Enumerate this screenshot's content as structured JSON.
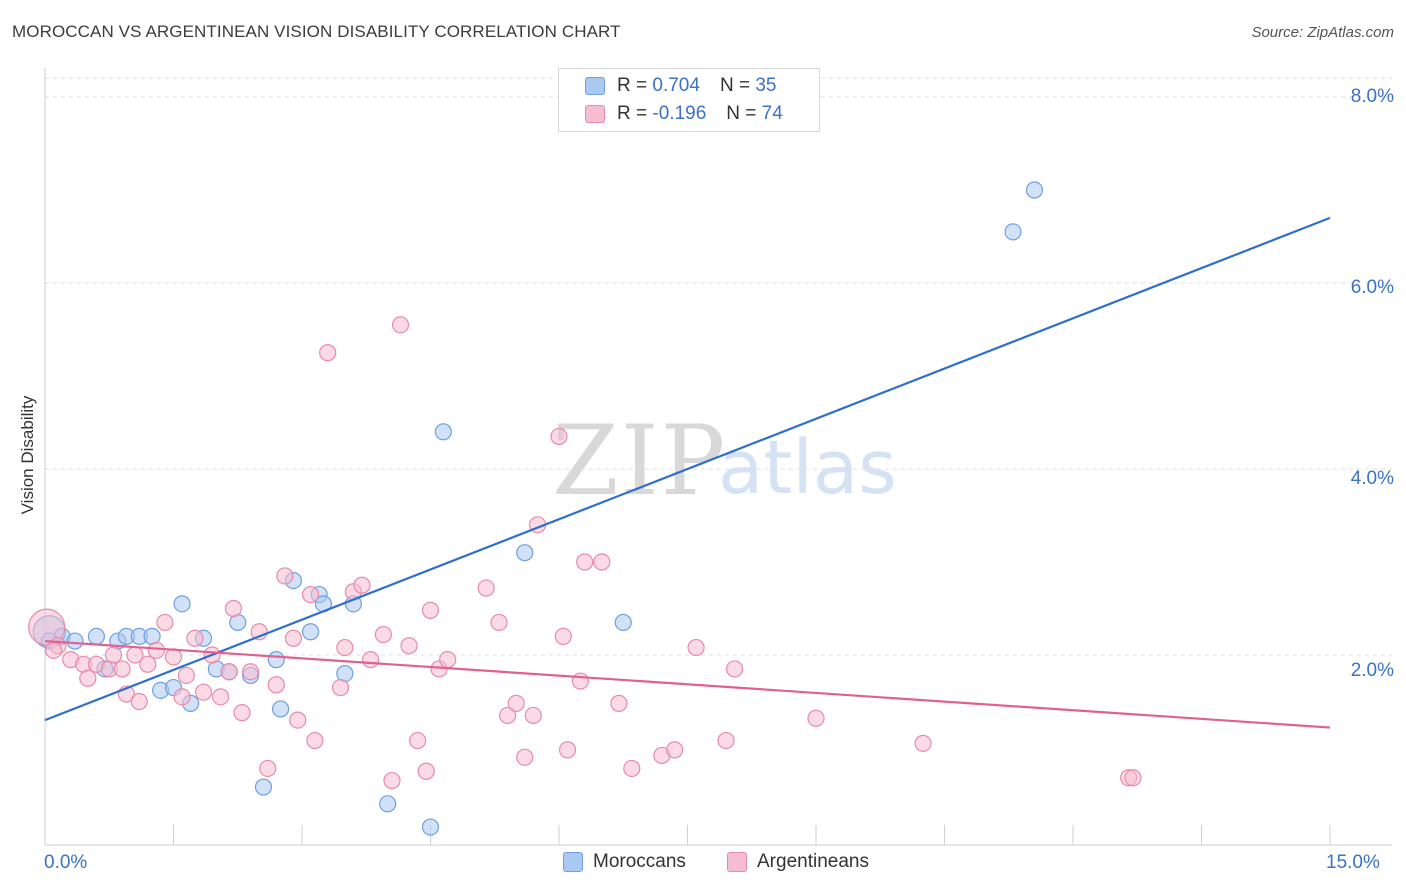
{
  "header": {
    "title": "MOROCCAN VS ARGENTINEAN VISION DISABILITY CORRELATION CHART",
    "source": "Source: ZipAtlas.com"
  },
  "watermark": {
    "zip": "ZIP",
    "atlas": "atlas"
  },
  "legend": {
    "rows": [
      {
        "r_label": "R = ",
        "r_value": "0.704",
        "n_label": "N = ",
        "n_value": "35",
        "color": "#a9c8f2",
        "border": "#6f9fe0"
      },
      {
        "r_label": "R = ",
        "r_value": "-0.196",
        "n_label": "N = ",
        "n_value": "74",
        "color": "#f6bdd0",
        "border": "#e88aaa"
      }
    ]
  },
  "bottom_legend": {
    "items": [
      {
        "label": "Moroccans",
        "color": "#a9c8f2",
        "border": "#6f9fe0"
      },
      {
        "label": "Argentineans",
        "color": "#f6bdd0",
        "border": "#e88aaa"
      }
    ]
  },
  "axes": {
    "x_min_label": "0.0%",
    "x_max_label": "15.0%",
    "y_ticks": [
      "8.0%",
      "6.0%",
      "4.0%",
      "2.0%"
    ]
  },
  "chart_data": {
    "type": "scatter",
    "title": "MOROCCAN VS ARGENTINEAN VISION DISABILITY CORRELATION CHART",
    "xlabel": "",
    "ylabel": "Vision Disability",
    "xlim": [
      0,
      15
    ],
    "ylim": [
      0,
      8.2
    ],
    "y_gridlines": [
      2,
      4,
      6,
      8,
      8.2
    ],
    "series": [
      {
        "name": "Moroccans",
        "color": "#a9c8f2",
        "stroke": "#6f9fe0",
        "line_color": "#2f6fcc",
        "trend": {
          "x": [
            0,
            15
          ],
          "y": [
            1.3,
            6.7
          ]
        },
        "points": [
          [
            0.05,
            2.25
          ],
          [
            0.2,
            2.2
          ],
          [
            0.35,
            2.15
          ],
          [
            0.6,
            2.2
          ],
          [
            0.85,
            2.15
          ],
          [
            0.95,
            2.2
          ],
          [
            1.1,
            2.2
          ],
          [
            1.25,
            2.2
          ],
          [
            0.7,
            1.85
          ],
          [
            1.35,
            1.62
          ],
          [
            1.5,
            1.65
          ],
          [
            1.6,
            2.55
          ],
          [
            1.7,
            1.48
          ],
          [
            1.85,
            2.18
          ],
          [
            2.0,
            1.85
          ],
          [
            2.15,
            1.82
          ],
          [
            2.25,
            2.35
          ],
          [
            2.4,
            1.78
          ],
          [
            2.55,
            0.58
          ],
          [
            2.7,
            1.95
          ],
          [
            2.75,
            1.42
          ],
          [
            2.9,
            2.8
          ],
          [
            3.1,
            2.25
          ],
          [
            3.2,
            2.65
          ],
          [
            3.25,
            2.55
          ],
          [
            3.5,
            1.8
          ],
          [
            3.6,
            2.55
          ],
          [
            4.0,
            0.4
          ],
          [
            4.5,
            0.15
          ],
          [
            4.65,
            4.4
          ],
          [
            5.6,
            3.1
          ],
          [
            6.75,
            2.35
          ],
          [
            11.3,
            6.55
          ],
          [
            11.55,
            7.0
          ],
          [
            0.05,
            2.15
          ]
        ]
      },
      {
        "name": "Argentineans",
        "color": "#f6bdd0",
        "stroke": "#e88aaa",
        "line_color": "#e06090",
        "trend": {
          "x": [
            0,
            15
          ],
          "y": [
            2.15,
            1.22
          ]
        },
        "points": [
          [
            0.02,
            2.3
          ],
          [
            0.15,
            2.1
          ],
          [
            0.3,
            1.95
          ],
          [
            0.45,
            1.9
          ],
          [
            0.5,
            1.75
          ],
          [
            0.6,
            1.9
          ],
          [
            0.75,
            1.85
          ],
          [
            0.8,
            2.0
          ],
          [
            0.9,
            1.85
          ],
          [
            0.95,
            1.58
          ],
          [
            1.05,
            2.0
          ],
          [
            1.1,
            1.5
          ],
          [
            1.2,
            1.9
          ],
          [
            1.3,
            2.05
          ],
          [
            1.4,
            2.35
          ],
          [
            1.5,
            1.98
          ],
          [
            1.6,
            1.55
          ],
          [
            1.65,
            1.78
          ],
          [
            1.75,
            2.18
          ],
          [
            1.85,
            1.6
          ],
          [
            1.95,
            2.0
          ],
          [
            2.05,
            1.55
          ],
          [
            2.15,
            1.82
          ],
          [
            2.2,
            2.5
          ],
          [
            2.3,
            1.38
          ],
          [
            2.4,
            1.82
          ],
          [
            2.5,
            2.25
          ],
          [
            2.6,
            0.78
          ],
          [
            2.7,
            1.68
          ],
          [
            2.8,
            2.85
          ],
          [
            2.9,
            2.18
          ],
          [
            2.95,
            1.3
          ],
          [
            3.1,
            2.65
          ],
          [
            3.15,
            1.08
          ],
          [
            3.3,
            5.25
          ],
          [
            3.45,
            1.65
          ],
          [
            3.5,
            2.08
          ],
          [
            3.6,
            2.68
          ],
          [
            3.7,
            2.75
          ],
          [
            3.8,
            1.95
          ],
          [
            3.95,
            2.22
          ],
          [
            4.05,
            0.65
          ],
          [
            4.15,
            5.55
          ],
          [
            4.25,
            2.1
          ],
          [
            4.35,
            1.08
          ],
          [
            4.45,
            0.75
          ],
          [
            4.5,
            2.48
          ],
          [
            4.6,
            1.85
          ],
          [
            4.7,
            1.95
          ],
          [
            5.15,
            2.72
          ],
          [
            5.3,
            2.35
          ],
          [
            5.4,
            1.35
          ],
          [
            5.5,
            1.48
          ],
          [
            5.6,
            0.9
          ],
          [
            5.7,
            1.35
          ],
          [
            5.75,
            3.4
          ],
          [
            6.05,
            2.2
          ],
          [
            6.0,
            4.35
          ],
          [
            6.1,
            0.98
          ],
          [
            6.25,
            1.72
          ],
          [
            6.3,
            3.0
          ],
          [
            6.5,
            3.0
          ],
          [
            6.7,
            1.48
          ],
          [
            6.85,
            0.78
          ],
          [
            7.2,
            0.92
          ],
          [
            7.35,
            0.98
          ],
          [
            7.6,
            2.08
          ],
          [
            7.95,
            1.08
          ],
          [
            8.05,
            1.85
          ],
          [
            9.0,
            1.32
          ],
          [
            10.25,
            1.05
          ],
          [
            12.65,
            0.68
          ],
          [
            12.7,
            0.68
          ],
          [
            0.1,
            2.05
          ]
        ]
      }
    ]
  }
}
